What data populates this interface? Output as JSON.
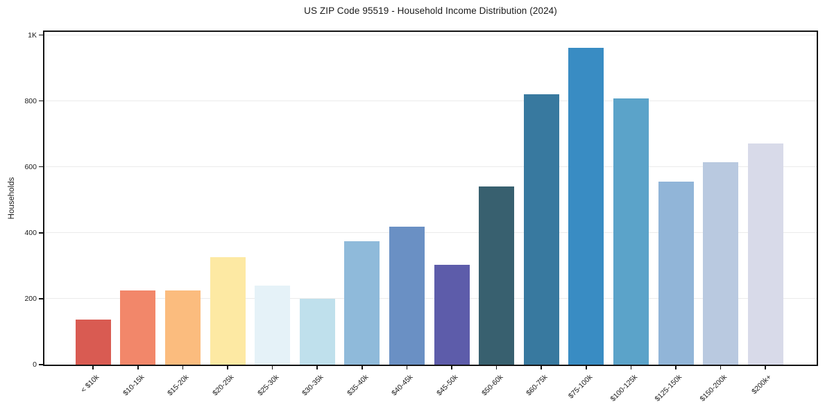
{
  "chart_data": {
    "type": "bar",
    "title": "US ZIP Code 95519 - Household Income Distribution (2024)",
    "xlabel": "",
    "ylabel": "Households",
    "categories": [
      "< $10k",
      "$10-15k",
      "$15-20k",
      "$20-25k",
      "$25-30k",
      "$30-35k",
      "$35-40k",
      "$40-45k",
      "$45-50k",
      "$50-60k",
      "$60-75k",
      "$75-100k",
      "$100-125k",
      "$125-150k",
      "$150-200k",
      "$200k+"
    ],
    "values": [
      136,
      225,
      225,
      325,
      240,
      200,
      375,
      418,
      303,
      540,
      820,
      962,
      807,
      555,
      615,
      670
    ],
    "bar_colors": [
      "#d95b52",
      "#f2876a",
      "#fbbc7e",
      "#fde9a3",
      "#e5f2f8",
      "#bfe0ec",
      "#8fbada",
      "#6a90c4",
      "#5d5caa",
      "#38606f",
      "#38799f",
      "#398cc3",
      "#5ba3c9",
      "#91b5d8",
      "#b9c9e0",
      "#d8dae9"
    ],
    "ylim": [
      0,
      1000
    ],
    "yticks": [
      0,
      200,
      400,
      600,
      800,
      1000
    ],
    "ytick_labels": [
      "0",
      "200",
      "400",
      "600",
      "800",
      "1K"
    ],
    "grid": "horizontal",
    "legend": "none",
    "colors": {
      "background": "#ffffff",
      "spine": "#141414",
      "grid": "#ebebeb",
      "text": "#1a1a1a"
    }
  }
}
